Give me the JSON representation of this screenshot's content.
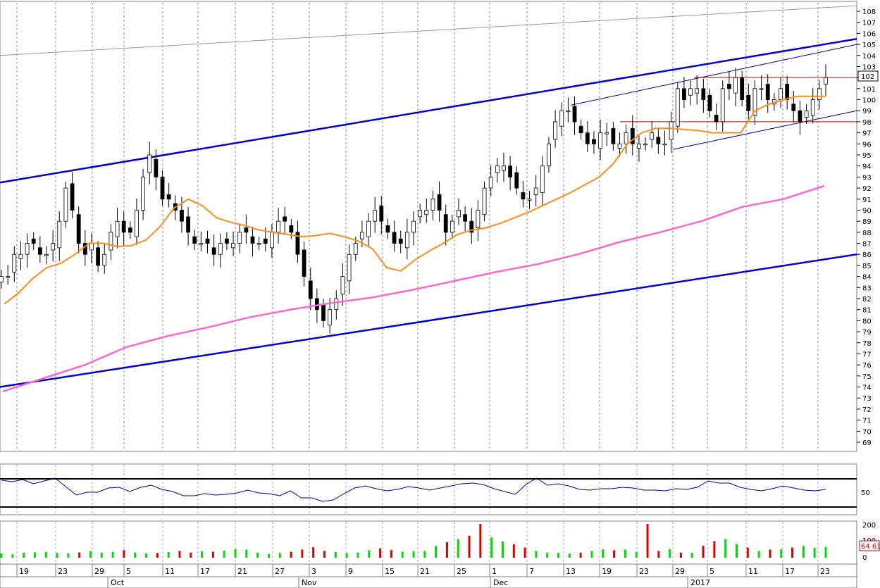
{
  "chart_data": [
    {
      "type": "candlestick",
      "panel": "price",
      "y_axis": {
        "min": 69,
        "max": 108,
        "step": 1,
        "position": "right"
      },
      "grid": {
        "vertical": "dashed",
        "horizontal": "none"
      },
      "x_labels": [
        {
          "text": "19",
          "row": "day"
        },
        {
          "text": "23",
          "row": "day"
        },
        {
          "text": "29",
          "row": "day"
        },
        {
          "text": "5",
          "row": "day"
        },
        {
          "text": "11",
          "row": "day"
        },
        {
          "text": "17",
          "row": "day"
        },
        {
          "text": "21",
          "row": "day"
        },
        {
          "text": "27",
          "row": "day"
        },
        {
          "text": "3",
          "row": "day"
        },
        {
          "text": "9",
          "row": "day"
        },
        {
          "text": "15",
          "row": "day"
        },
        {
          "text": "21",
          "row": "day"
        },
        {
          "text": "25",
          "row": "day"
        },
        {
          "text": "1",
          "row": "day"
        },
        {
          "text": "7",
          "row": "day"
        },
        {
          "text": "13",
          "row": "day"
        },
        {
          "text": "19",
          "row": "day"
        },
        {
          "text": "23",
          "row": "day"
        },
        {
          "text": "29",
          "row": "day"
        },
        {
          "text": "5",
          "row": "day"
        },
        {
          "text": "11",
          "row": "day"
        },
        {
          "text": "17",
          "row": "day"
        },
        {
          "text": "23",
          "row": "day"
        }
      ],
      "months": [
        "Oct",
        "Nov",
        "Dec",
        "2017"
      ],
      "last_price_label": "102",
      "series": [
        {
          "kind": "ohlc",
          "color": "#000000",
          "closes": [
            84,
            84,
            86,
            86,
            87,
            87,
            86,
            86,
            87,
            89,
            92,
            90,
            87,
            86,
            87,
            85,
            86,
            88,
            89,
            88,
            88,
            90,
            93,
            95,
            93,
            91,
            91,
            90,
            89,
            88,
            87,
            87,
            87,
            86,
            87,
            87,
            87,
            88,
            88,
            87,
            87,
            87,
            88,
            89,
            89,
            88,
            86,
            84,
            82,
            81,
            80,
            81,
            82,
            84,
            86,
            87,
            88,
            89,
            90,
            89,
            88,
            87,
            87,
            88,
            89,
            90,
            90,
            91,
            90,
            88,
            89,
            90,
            89,
            88,
            90,
            92,
            93,
            94,
            94,
            93,
            92,
            91,
            91,
            92,
            94,
            96,
            98,
            99,
            99,
            98,
            97,
            96,
            96,
            97,
            97,
            96,
            96,
            97,
            96,
            96,
            96,
            97,
            96,
            96,
            98,
            101,
            100,
            101,
            101,
            100,
            99,
            98,
            101,
            101,
            102,
            100,
            99,
            101,
            101,
            100,
            100,
            101,
            100,
            99,
            98,
            99,
            100,
            101,
            102
          ]
        },
        {
          "kind": "line",
          "name": "",
          "color": "#ff8c1a",
          "values": [
            81.5,
            82.5,
            83.8,
            84.8,
            85.2,
            86,
            87,
            87,
            86.7,
            86.8,
            87.3,
            88.5,
            90.2,
            91,
            90.4,
            89.3,
            88.9,
            88.6,
            88.2,
            88,
            87.8,
            87.6,
            87.7,
            87.9,
            87.6,
            87.2,
            86.5,
            84.8,
            84.5,
            85.5,
            86.3,
            87,
            87.8,
            88.2,
            88.4,
            88.8,
            89.3,
            89.8,
            90.4,
            91,
            91.6,
            92.3,
            93,
            94.2,
            96,
            97,
            97.4,
            97.4,
            97.3,
            97.2,
            97,
            97,
            97,
            99,
            99.6,
            100,
            100.3,
            100.3,
            100.3
          ]
        },
        {
          "kind": "line",
          "name": "",
          "color": "#ff66cc",
          "values": [
            73.6,
            74.8,
            76,
            77.6,
            78.6,
            79.4,
            80.3,
            81,
            81.6,
            82.1,
            82.8,
            83.6,
            84.4,
            85.1,
            86,
            87.1,
            88,
            89,
            90.3,
            91,
            92.2
          ]
        }
      ],
      "trendlines": [
        {
          "color": "#0000cc",
          "width": "thick",
          "from": 92.5,
          "to": 105.5
        },
        {
          "color": "#0000cc",
          "width": "thick",
          "from": 74,
          "to": 86
        },
        {
          "color": "#999999",
          "width": "thin",
          "from": 104,
          "to": 108.5
        },
        {
          "color": "#000099",
          "width": "thin",
          "from": 99.5,
          "to": 105
        },
        {
          "color": "#000099",
          "width": "thin",
          "from": 95.5,
          "to": 99
        },
        {
          "color": "#cc0000",
          "width": "thin",
          "level": 102
        },
        {
          "color": "#cc0000",
          "width": "thin",
          "level": 98
        }
      ]
    },
    {
      "type": "line",
      "panel": "oscillator",
      "y_axis_labels": [
        "50"
      ],
      "bands": [
        70,
        30
      ],
      "color": "#000099",
      "values": [
        68,
        66,
        69,
        63,
        67,
        71,
        59,
        47,
        51,
        51,
        57,
        58,
        52,
        58,
        61,
        55,
        52,
        46,
        46,
        49,
        47,
        48,
        50,
        54,
        50,
        49,
        46,
        53,
        43,
        43,
        38,
        40,
        49,
        57,
        60,
        56,
        53,
        55,
        59,
        57,
        54,
        57,
        60,
        63,
        64,
        62,
        56,
        52,
        48,
        62,
        71,
        61,
        63,
        60,
        55,
        54,
        56,
        56,
        58,
        57,
        54,
        54,
        53,
        56,
        55,
        58,
        67,
        64,
        64,
        58,
        55,
        53,
        56,
        60,
        57,
        54,
        53,
        55
      ]
    },
    {
      "type": "bar",
      "panel": "volume",
      "y_axis_labels": [
        "200",
        "100",
        "0"
      ],
      "last_value_label": "64 61",
      "colors": {
        "up": "#00dd00",
        "down": "#dd0000"
      },
      "values": [
        25,
        20,
        30,
        32,
        35,
        28,
        26,
        31,
        40,
        30,
        35,
        45,
        30,
        25,
        28,
        33,
        40,
        30,
        38,
        36,
        42,
        50,
        48,
        30,
        22,
        28,
        35,
        48,
        62,
        40,
        35,
        27,
        30,
        44,
        55,
        45,
        36,
        38,
        40,
        70,
        92,
        110,
        130,
        200,
        120,
        96,
        80,
        60,
        40,
        30,
        28,
        25,
        30,
        40,
        50,
        44,
        48,
        35,
        200,
        40,
        50,
        30,
        28,
        70,
        98,
        110,
        80,
        60,
        40,
        48,
        50,
        60,
        70,
        58,
        64
      ]
    }
  ]
}
